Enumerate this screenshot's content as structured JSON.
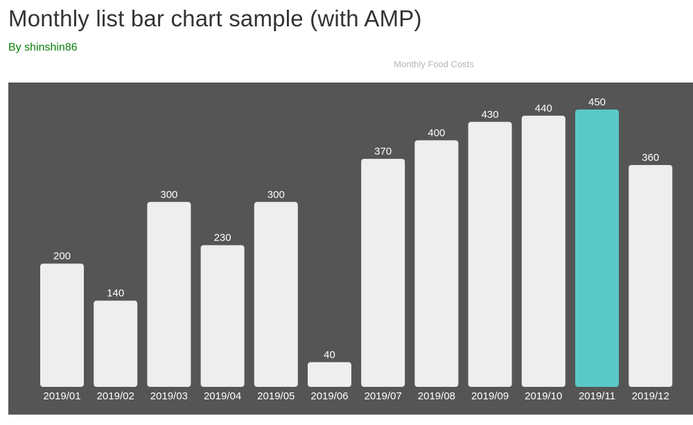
{
  "header": {
    "title": "Monthly list bar chart sample (with AMP)",
    "author": "By shinshin86"
  },
  "chart_data": {
    "type": "bar",
    "title": "Monthly Food Costs",
    "categories": [
      "2019/01",
      "2019/02",
      "2019/03",
      "2019/04",
      "2019/05",
      "2019/06",
      "2019/07",
      "2019/08",
      "2019/09",
      "2019/10",
      "2019/11",
      "2019/12"
    ],
    "values": [
      200,
      140,
      300,
      230,
      300,
      40,
      370,
      400,
      430,
      440,
      450,
      360
    ],
    "highlighted_category": "2019/11",
    "ylim": [
      0,
      450
    ],
    "grid": false,
    "legend": "none",
    "colors": {
      "background": "#555555",
      "bar": "#eeeeee",
      "highlight": "#5bc8c8",
      "label": "#ffffff"
    }
  }
}
